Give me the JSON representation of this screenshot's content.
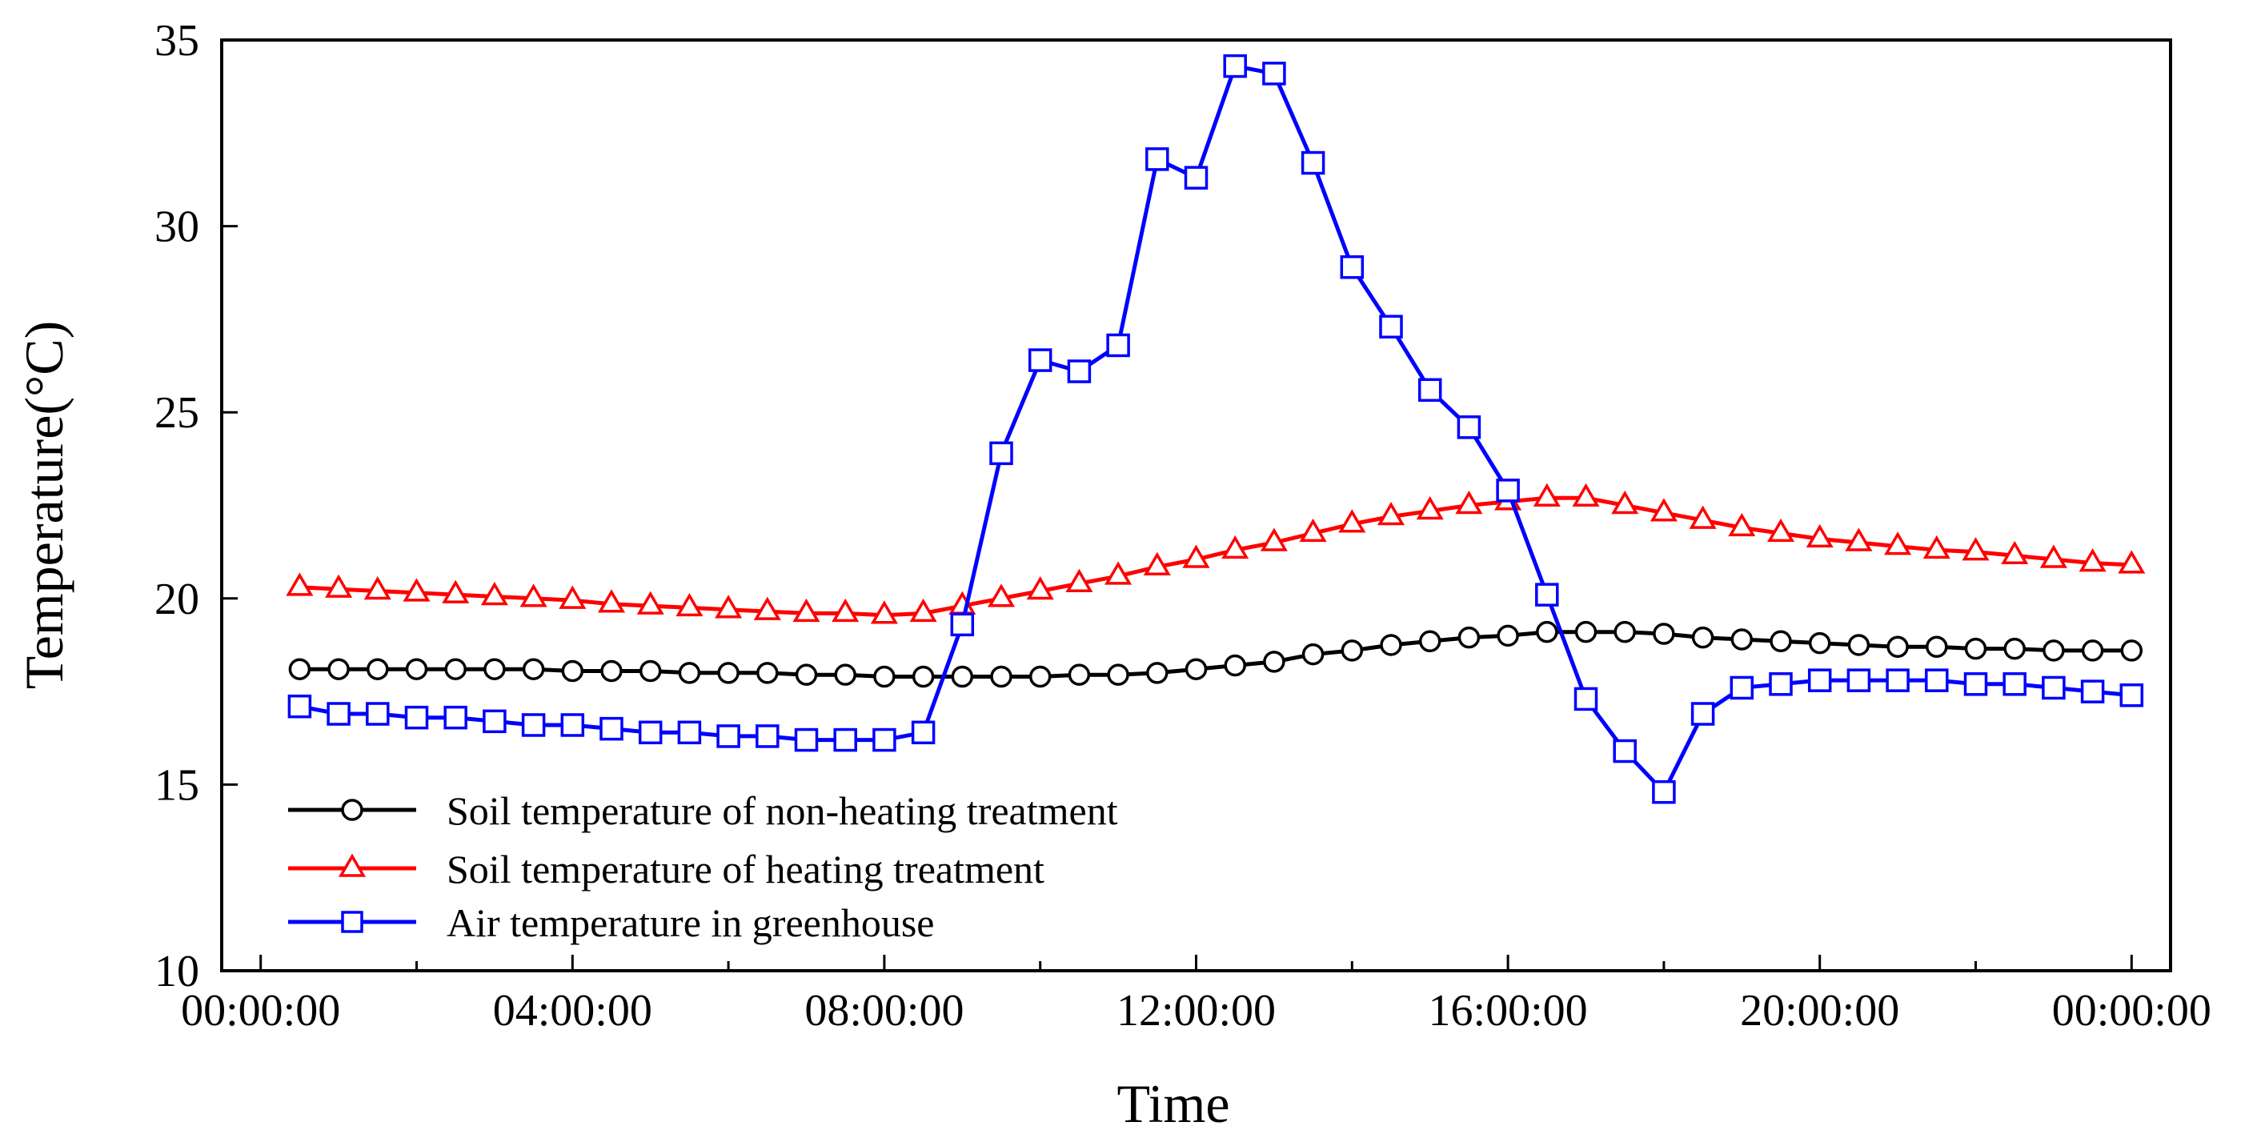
{
  "chart_data": {
    "type": "line",
    "title": "",
    "xlabel": "Time",
    "ylabel": "Temperature(°C)",
    "ylim": [
      10,
      35
    ],
    "yticks": [
      10,
      15,
      20,
      25,
      30,
      35
    ],
    "xlim": [
      -0.5,
      24.5
    ],
    "x_major_ticks": [
      0,
      4,
      8,
      12,
      16,
      20,
      24
    ],
    "x_minor_ticks": [
      2,
      6,
      10,
      14,
      18,
      22
    ],
    "x_tick_labels": [
      "00:00:00",
      "04:00:00",
      "08:00:00",
      "12:00:00",
      "16:00:00",
      "20:00:00",
      "00:00:00"
    ],
    "x_unit": "hours",
    "x": [
      0.5,
      1,
      1.5,
      2,
      2.5,
      3,
      3.5,
      4,
      4.5,
      5,
      5.5,
      6,
      6.5,
      7,
      7.5,
      8,
      8.5,
      9,
      9.5,
      10,
      10.5,
      11,
      11.5,
      12,
      12.5,
      13,
      13.5,
      14,
      14.5,
      15,
      15.5,
      16,
      16.5,
      17,
      17.5,
      18,
      18.5,
      19,
      19.5,
      20,
      20.5,
      21,
      21.5,
      22,
      22.5,
      23,
      23.5,
      24
    ],
    "legend_position": "bottom-left",
    "series": [
      {
        "name": "Soil temperature of non-heating treatment",
        "color": "#000000",
        "marker": "circle",
        "values": [
          18.1,
          18.1,
          18.1,
          18.1,
          18.1,
          18.1,
          18.1,
          18.05,
          18.05,
          18.05,
          18.0,
          18.0,
          18.0,
          17.95,
          17.95,
          17.9,
          17.9,
          17.9,
          17.9,
          17.9,
          17.95,
          17.95,
          18.0,
          18.1,
          18.2,
          18.3,
          18.5,
          18.6,
          18.75,
          18.85,
          18.95,
          19.0,
          19.1,
          19.1,
          19.1,
          19.05,
          18.95,
          18.9,
          18.85,
          18.8,
          18.75,
          18.7,
          18.7,
          18.65,
          18.65,
          18.6,
          18.6,
          18.6
        ]
      },
      {
        "name": "Soil temperature of heating treatment",
        "color": "#ff0000",
        "marker": "triangle",
        "values": [
          20.3,
          20.25,
          20.2,
          20.15,
          20.1,
          20.05,
          20.0,
          19.95,
          19.85,
          19.8,
          19.75,
          19.7,
          19.65,
          19.6,
          19.6,
          19.55,
          19.6,
          19.8,
          20.0,
          20.2,
          20.4,
          20.6,
          20.85,
          21.05,
          21.3,
          21.5,
          21.75,
          22.0,
          22.2,
          22.35,
          22.5,
          22.6,
          22.7,
          22.7,
          22.5,
          22.3,
          22.1,
          21.9,
          21.75,
          21.6,
          21.5,
          21.4,
          21.3,
          21.25,
          21.15,
          21.05,
          20.95,
          20.9
        ]
      },
      {
        "name": "Air temperature in greenhouse",
        "color": "#0000ff",
        "marker": "square",
        "values": [
          17.1,
          16.9,
          16.9,
          16.8,
          16.8,
          16.7,
          16.6,
          16.6,
          16.5,
          16.4,
          16.4,
          16.3,
          16.3,
          16.2,
          16.2,
          16.2,
          16.4,
          19.3,
          23.9,
          26.4,
          26.1,
          26.8,
          31.8,
          31.3,
          34.3,
          34.1,
          31.7,
          28.9,
          27.3,
          25.6,
          24.6,
          22.9,
          20.1,
          17.3,
          15.9,
          14.8,
          16.9,
          17.6,
          17.7,
          17.8,
          17.8,
          17.8,
          17.8,
          17.7,
          17.7,
          17.6,
          17.5,
          17.4
        ]
      }
    ]
  }
}
